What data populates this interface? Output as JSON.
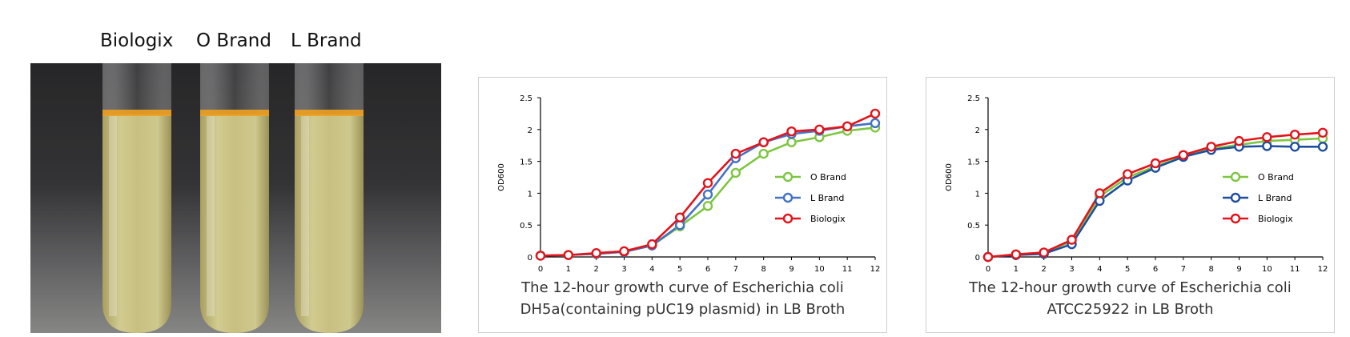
{
  "photo": {
    "tube_labels": [
      "Biologix",
      "O Brand",
      "L Brand"
    ]
  },
  "chart_data": [
    {
      "type": "line",
      "xlabel": "",
      "ylabel": "OD600",
      "x": [
        0,
        1,
        2,
        3,
        4,
        5,
        6,
        7,
        8,
        9,
        10,
        11,
        12
      ],
      "xlim": [
        0,
        12
      ],
      "ylim": [
        0,
        2.5
      ],
      "yticks": [
        "0",
        "0.5",
        "1",
        "1.5",
        "2",
        "2.5"
      ],
      "grid": false,
      "legend": "right",
      "caption_lines": [
        "The 12-hour growth curve of Escherichia coli",
        "DH5a(containing pUC19 plasmid) in LB Broth"
      ],
      "series": [
        {
          "name": "O Brand",
          "color": "#7ec642",
          "values": [
            0.02,
            0.03,
            0.05,
            0.08,
            0.18,
            0.48,
            0.8,
            1.32,
            1.62,
            1.8,
            1.88,
            1.98,
            2.03
          ]
        },
        {
          "name": "L Brand",
          "color": "#4472c4",
          "values": [
            0.02,
            0.03,
            0.05,
            0.08,
            0.18,
            0.5,
            0.98,
            1.55,
            1.8,
            1.93,
            1.98,
            2.05,
            2.1
          ]
        },
        {
          "name": "Biologix",
          "color": "#e3141b",
          "values": [
            0.02,
            0.03,
            0.06,
            0.09,
            0.2,
            0.62,
            1.16,
            1.62,
            1.8,
            1.97,
            2.0,
            2.05,
            2.25
          ]
        }
      ]
    },
    {
      "type": "line",
      "xlabel": "",
      "ylabel": "OD600",
      "x": [
        0,
        1,
        2,
        3,
        4,
        5,
        6,
        7,
        8,
        9,
        10,
        11,
        12
      ],
      "xlim": [
        0,
        12
      ],
      "ylim": [
        0,
        2.5
      ],
      "yticks": [
        "0",
        "0.5",
        "1",
        "1.5",
        "2",
        "2.5"
      ],
      "grid": false,
      "legend": "right",
      "caption_lines": [
        "The 12-hour growth curve of Escherichia coli",
        "ATCC25922 in LB Broth"
      ],
      "series": [
        {
          "name": "O Brand",
          "color": "#7ec642",
          "values": [
            0.0,
            0.04,
            0.06,
            0.25,
            0.95,
            1.25,
            1.42,
            1.58,
            1.7,
            1.76,
            1.82,
            1.84,
            1.86
          ]
        },
        {
          "name": "L Brand",
          "color": "#1f4e9e",
          "values": [
            0.0,
            0.03,
            0.05,
            0.2,
            0.88,
            1.2,
            1.4,
            1.57,
            1.68,
            1.73,
            1.74,
            1.73,
            1.73
          ]
        },
        {
          "name": "Biologix",
          "color": "#e3141b",
          "values": [
            0.0,
            0.04,
            0.07,
            0.27,
            1.0,
            1.3,
            1.47,
            1.6,
            1.73,
            1.82,
            1.88,
            1.92,
            1.95
          ]
        }
      ]
    }
  ]
}
